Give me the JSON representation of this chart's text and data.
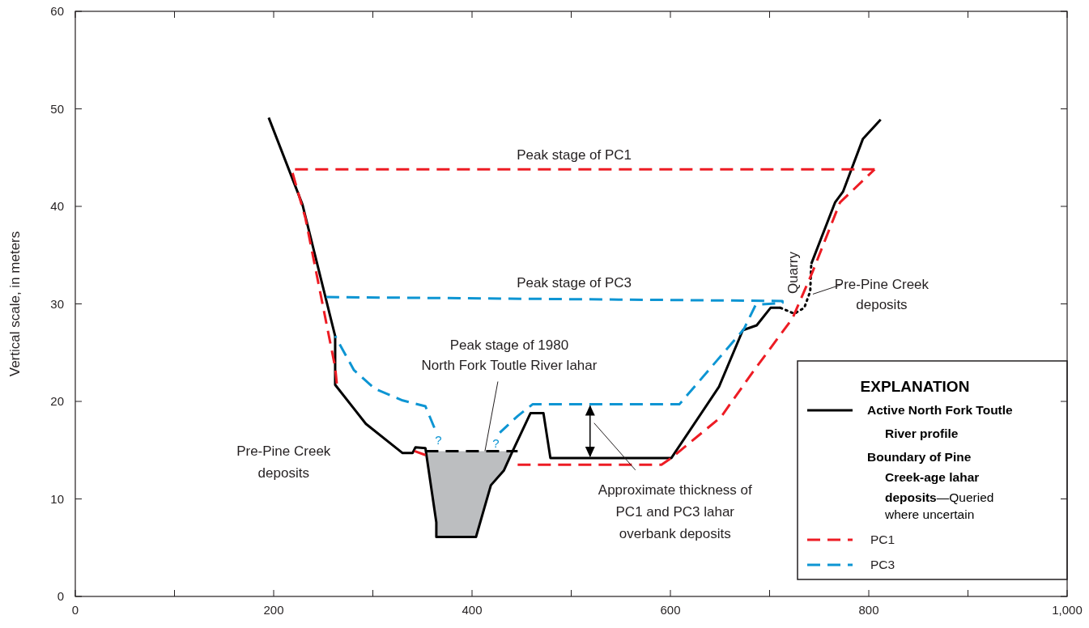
{
  "chart_data": {
    "type": "line",
    "ylabel": "Vertical scale, in meters",
    "xlim": [
      0,
      1000
    ],
    "ylim": [
      0,
      60
    ],
    "xticks": [
      0,
      {
        "value": 100,
        "label": null
      },
      200,
      {
        "value": 300,
        "label": null
      },
      400,
      {
        "value": 500,
        "label": null
      },
      600,
      {
        "value": 700,
        "label": null
      },
      800,
      {
        "value": 900,
        "label": null
      },
      {
        "value": 1000,
        "label": "1,000"
      }
    ],
    "yticks": [
      0,
      10,
      20,
      30,
      40,
      50,
      60
    ],
    "legend": "bottom right",
    "legend_title": "EXPLANATION",
    "grid": false,
    "marker": "none",
    "series": [
      {
        "name": "Active North Fork Toutle\nRiver profile",
        "color": "#000000",
        "line_style": "solid",
        "x": [
          195,
          229,
          262,
          262,
          293,
          330,
          340,
          343,
          353,
          364,
          364,
          404,
          419,
          432,
          440,
          459,
          472,
          479,
          601,
          649,
          673,
          687,
          701,
          711,
          null,
          742,
          766,
          774,
          794,
          812
        ],
        "values": [
          49.1,
          40.2,
          26.7,
          21.7,
          17.7,
          14.7,
          14.7,
          15.3,
          15.2,
          7.6,
          6.1,
          6.1,
          11.4,
          12.9,
          14.7,
          18.8,
          18.8,
          14.2,
          14.2,
          21.5,
          27.3,
          27.8,
          29.6,
          29.6,
          null,
          34.1,
          40.4,
          41.5,
          46.9,
          48.9
        ]
      },
      {
        "color": "#000000",
        "line_style": "dotted",
        "x": [
          711,
          725,
          735,
          741,
          742
        ],
        "values": [
          29.6,
          29.0,
          29.6,
          31.3,
          34.1
        ]
      },
      {
        "name": "PC1",
        "color": "#ed1c24",
        "line_style": "dashed",
        "x": [
          806,
          218,
          232,
          262,
          264,
          null,
          342,
          353,
          null,
          446,
          591,
          601,
          651,
          683,
          723,
          743,
          771,
          806
        ],
        "values": [
          43.8,
          43.8,
          38.8,
          23.5,
          21.5,
          null,
          14.9,
          14.5,
          null,
          13.5,
          13.5,
          14.2,
          18.4,
          23,
          28.5,
          33.2,
          40.4,
          43.8
        ]
      },
      {
        "name": "PC3",
        "color": "#0d95d3",
        "line_style": "dashed",
        "x": [
          362,
          353,
          330,
          302,
          281,
          262,
          null,
          253,
          713,
          713,
          686,
          674,
          647,
          609,
          461,
          446,
          428
        ],
        "values": [
          17.3,
          19.5,
          20.1,
          21.3,
          23.2,
          26.7,
          null,
          30.7,
          30.3,
          30.1,
          29.9,
          27.4,
          24.2,
          19.7,
          19.7,
          18.5,
          16.8
        ]
      },
      {
        "color": "#000000",
        "line_style": "dashed",
        "x": [
          353,
          364,
          364,
          404,
          419,
          432,
          440,
          446
        ],
        "values": [
          14.9,
          14.9,
          14.9,
          14.9,
          14.9,
          14.9,
          14.9,
          14.9
        ]
      }
    ],
    "annotations": [
      {
        "text": "Peak stage of PC1",
        "x": 503,
        "y": 43.8
      },
      {
        "text": "Peak stage of PC3",
        "x": 503,
        "y": 30.5
      },
      {
        "text": "Peak stage of 1980\nNorth Fork Toutle River lahar",
        "x": 413,
        "y": 14.9
      },
      "Pre-Pine Creek\ndeposits",
      "Quarry",
      {
        "text": "Pre-Pine Creek\ndeposits",
        "x": 742,
        "y": 31
      },
      "Approximate thickness of\nPC1 and PC3 lahar\noverbank deposits",
      "?",
      "?",
      "Boundary of Pine\nCreek-age lahar\ndeposits",
      "—Queried\nwhere uncertain"
    ]
  }
}
